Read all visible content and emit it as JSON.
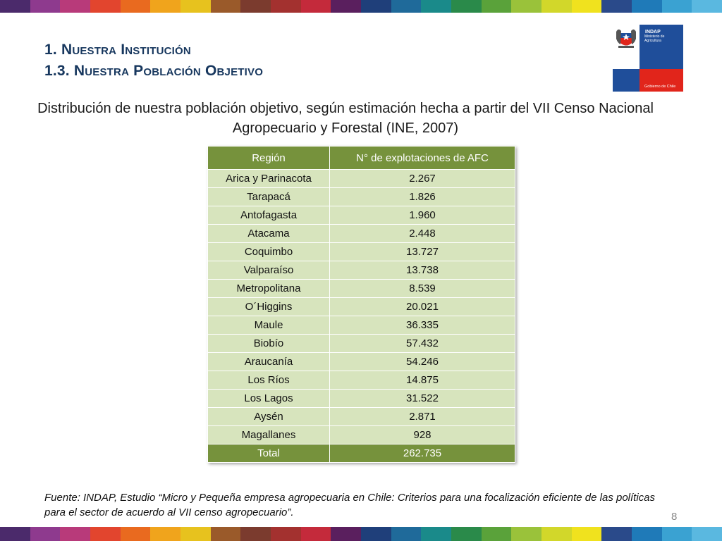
{
  "header": {
    "line1": "1. Nuestra Institución",
    "line2": "1.3. Nuestra Población Objetivo"
  },
  "logo": {
    "name": "INDAP",
    "ministry": "Ministerio de Agricultura",
    "government": "Gobierno de Chile",
    "colors": {
      "blue": "#1f4e9a",
      "red": "#e1251b"
    }
  },
  "subtitle": "Distribución de nuestra población objetivo, según estimación hecha a partir del VII Censo Nacional Agropecuario y Forestal (INE, 2007)",
  "table": {
    "headers": [
      "Región",
      "N° de explotaciones de AFC"
    ],
    "rows": [
      [
        "Arica y Parinacota",
        "2.267"
      ],
      [
        "Tarapacá",
        "1.826"
      ],
      [
        "Antofagasta",
        "1.960"
      ],
      [
        "Atacama",
        "2.448"
      ],
      [
        "Coquimbo",
        "13.727"
      ],
      [
        "Valparaíso",
        "13.738"
      ],
      [
        "Metropolitana",
        "8.539"
      ],
      [
        "O´Higgins",
        "20.021"
      ],
      [
        "Maule",
        "36.335"
      ],
      [
        "Biobío",
        "57.432"
      ],
      [
        "Araucanía",
        "54.246"
      ],
      [
        "Los Ríos",
        "14.875"
      ],
      [
        "Los Lagos",
        "31.522"
      ],
      [
        "Aysén",
        "2.871"
      ],
      [
        "Magallanes",
        "928"
      ]
    ],
    "total": [
      "Total",
      "262.735"
    ],
    "colors": {
      "header": "#76923c",
      "row": "#d7e4bd"
    }
  },
  "source": "Fuente: INDAP, Estudio “Micro y Pequeña empresa agropecuaria en Chile: Criterios para una focalización eficiente de las políticas para el sector de acuerdo al VII censo agropecuario”.",
  "page_number": "8",
  "stripe_colors": [
    "#4b2a6b",
    "#8e3a8e",
    "#b83a7a",
    "#e2452e",
    "#e96a1f",
    "#f0a41c",
    "#e7c21e",
    "#9a5a2a",
    "#7b3b2e",
    "#a3312f",
    "#c42a3b",
    "#5a1f5e",
    "#1f3f7a",
    "#1f6a9a",
    "#1a8a8a",
    "#2a8a4a",
    "#5aa23a",
    "#9ac23a",
    "#d2d72a",
    "#f0e21e",
    "#2a4a8a",
    "#1f7ab8",
    "#3aa2d2",
    "#5ab8e0"
  ]
}
